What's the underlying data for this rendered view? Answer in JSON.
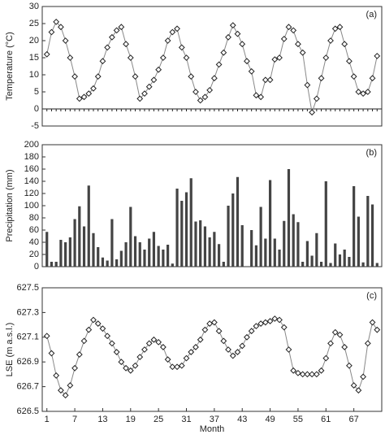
{
  "chart_data": [
    {
      "type": "line",
      "annotation": "(a)",
      "ylabel": "Temperature (°C)",
      "color": "#555555",
      "marker": "diamond",
      "zero_line": true,
      "x": [
        1,
        2,
        3,
        4,
        5,
        6,
        7,
        8,
        9,
        10,
        11,
        12,
        13,
        14,
        15,
        16,
        17,
        18,
        19,
        20,
        21,
        22,
        23,
        24,
        25,
        26,
        27,
        28,
        29,
        30,
        31,
        32,
        33,
        34,
        35,
        36,
        37,
        38,
        39,
        40,
        41,
        42,
        43,
        44,
        45,
        46,
        47,
        48,
        49,
        50,
        51,
        52,
        53,
        54,
        55,
        56,
        57,
        58,
        59,
        60,
        61,
        62,
        63,
        64,
        65,
        66,
        67,
        68,
        69,
        70,
        71,
        72
      ],
      "values": [
        16,
        22.5,
        25.5,
        24,
        20,
        15,
        9.5,
        3,
        3.5,
        4.5,
        6,
        9.5,
        14,
        18,
        21,
        23,
        24,
        19,
        15,
        9.5,
        3,
        4.5,
        6.5,
        8.5,
        11.5,
        15,
        20,
        22.5,
        23.5,
        18,
        15,
        9.5,
        5,
        2.5,
        3.5,
        5.5,
        9,
        13,
        16.5,
        21,
        24.5,
        22,
        19,
        14,
        11,
        4,
        3.5,
        8.5,
        8.5,
        14.5,
        15,
        20.5,
        24,
        23,
        19,
        16.5,
        7,
        -1,
        3,
        9,
        15,
        20,
        23.5,
        24,
        19,
        14,
        9.5,
        5,
        4.5,
        5,
        9,
        15.5
      ],
      "xlim": [
        0,
        73
      ],
      "ylim": [
        -5,
        30
      ],
      "yticks": [
        -5,
        0,
        5,
        10,
        15,
        20,
        25,
        30
      ]
    },
    {
      "type": "bar",
      "annotation": "(b)",
      "ylabel": "Precipitation (mm)",
      "color": "#444444",
      "x": [
        1,
        2,
        3,
        4,
        5,
        6,
        7,
        8,
        9,
        10,
        11,
        12,
        13,
        14,
        15,
        16,
        17,
        18,
        19,
        20,
        21,
        22,
        23,
        24,
        25,
        26,
        27,
        28,
        29,
        30,
        31,
        32,
        33,
        34,
        35,
        36,
        37,
        38,
        39,
        40,
        41,
        42,
        43,
        44,
        45,
        46,
        47,
        48,
        49,
        50,
        51,
        52,
        53,
        54,
        55,
        56,
        57,
        58,
        59,
        60,
        61,
        62,
        63,
        64,
        65,
        66,
        67,
        68,
        69,
        70,
        71,
        72
      ],
      "values": [
        57,
        8,
        8,
        44,
        40,
        48,
        78,
        99,
        66,
        133,
        55,
        32,
        15,
        10,
        78,
        12,
        26,
        40,
        98,
        50,
        40,
        28,
        46,
        57,
        34,
        28,
        36,
        5,
        128,
        108,
        122,
        145,
        74,
        76,
        66,
        48,
        57,
        37,
        8,
        100,
        120,
        147,
        68,
        0,
        60,
        35,
        98,
        46,
        142,
        46,
        28,
        75,
        160,
        86,
        73,
        8,
        42,
        18,
        55,
        8,
        140,
        6,
        38,
        20,
        28,
        16,
        132,
        82,
        7,
        116,
        102,
        6
      ],
      "xlim": [
        0,
        73
      ],
      "ylim": [
        0,
        200
      ],
      "yticks": [
        0,
        20,
        40,
        60,
        80,
        100,
        120,
        140,
        160,
        180,
        200
      ]
    },
    {
      "type": "line",
      "annotation": "(c)",
      "ylabel": "LSE (m a.s.l.)",
      "xlabel": "Month",
      "color": "#555555",
      "marker": "diamond",
      "x": [
        1,
        2,
        3,
        4,
        5,
        6,
        7,
        8,
        9,
        10,
        11,
        12,
        13,
        14,
        15,
        16,
        17,
        18,
        19,
        20,
        21,
        22,
        23,
        24,
        25,
        26,
        27,
        28,
        29,
        30,
        31,
        32,
        33,
        34,
        35,
        36,
        37,
        38,
        39,
        40,
        41,
        42,
        43,
        44,
        45,
        46,
        47,
        48,
        49,
        50,
        51,
        52,
        53,
        54,
        55,
        56,
        57,
        58,
        59,
        60,
        61,
        62,
        63,
        64,
        65,
        66,
        67,
        68,
        69,
        70,
        71,
        72
      ],
      "values": [
        627.11,
        626.97,
        626.79,
        626.67,
        626.63,
        626.71,
        626.85,
        626.96,
        627.07,
        627.16,
        627.24,
        627.21,
        627.17,
        627.11,
        627.05,
        626.98,
        626.9,
        626.85,
        626.83,
        626.87,
        626.94,
        627.0,
        627.05,
        627.08,
        627.06,
        627.02,
        626.92,
        626.86,
        626.86,
        626.87,
        626.93,
        626.98,
        627.02,
        627.08,
        627.16,
        627.21,
        627.22,
        627.15,
        627.07,
        627.0,
        626.95,
        626.98,
        627.03,
        627.1,
        627.15,
        627.19,
        627.21,
        627.22,
        627.23,
        627.25,
        627.24,
        627.18,
        627.0,
        626.83,
        626.81,
        626.8,
        626.8,
        626.8,
        626.8,
        626.83,
        626.93,
        627.05,
        627.14,
        627.12,
        627.02,
        626.87,
        626.71,
        626.67,
        626.78,
        627.05,
        627.22,
        627.16
      ],
      "xlim": [
        0,
        73
      ],
      "xticks": [
        1,
        7,
        13,
        19,
        25,
        31,
        37,
        43,
        49,
        55,
        61,
        67
      ],
      "ylim": [
        626.5,
        627.5
      ],
      "yticks": [
        626.5,
        626.7,
        626.9,
        627.1,
        627.3,
        627.5
      ]
    }
  ]
}
